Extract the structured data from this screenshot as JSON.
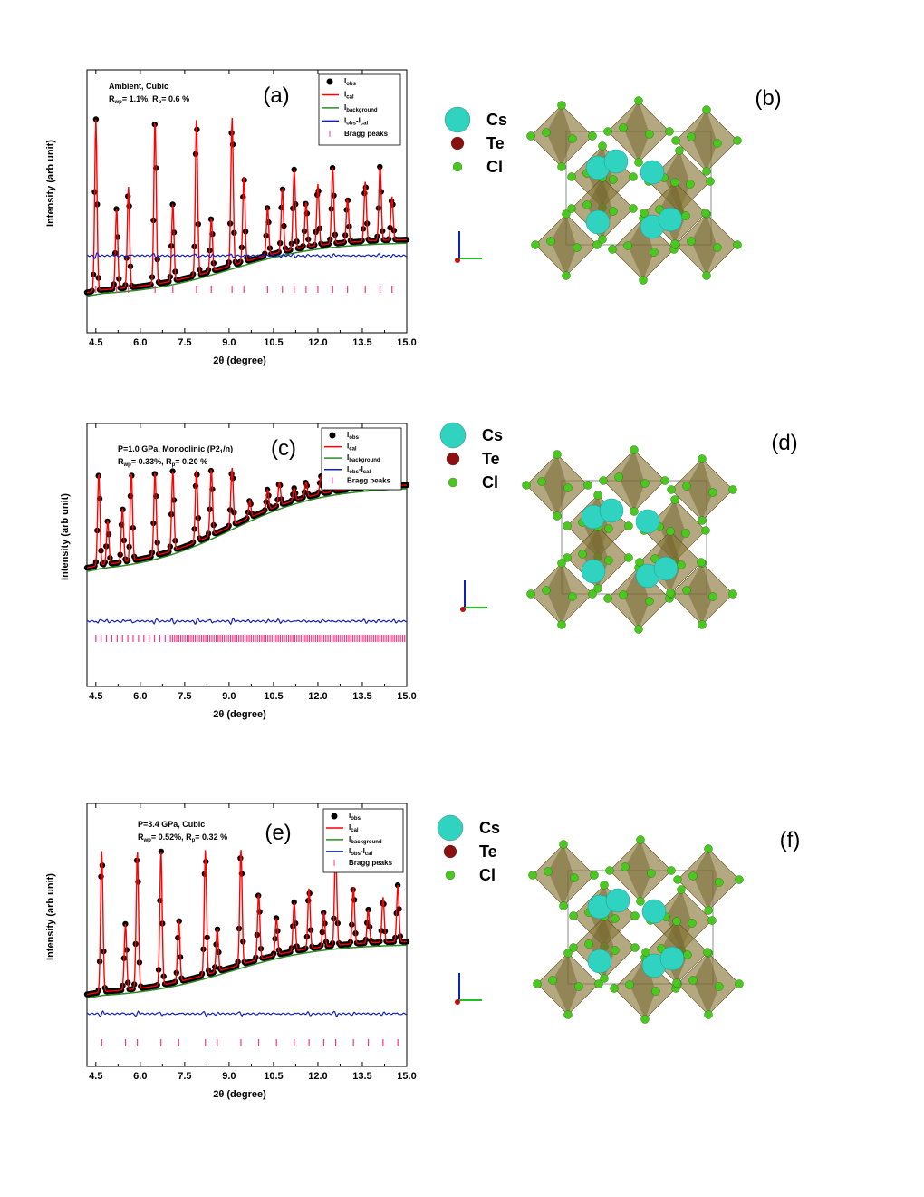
{
  "panels": [
    {
      "id": "a",
      "label": "(a)",
      "xlabel": "2θ (degree)",
      "ylabel": "Intensity (arb unit)",
      "info": [
        {
          "t": "Ambient, Cubic"
        },
        {
          "rwp": "= 1.1%, ",
          "rp": "= 0.6 %"
        }
      ],
      "legend": {
        "obs": "obs",
        "cal": "cal",
        "bg": "background",
        "diff": "obs",
        "diff2": "cal",
        "bragg": "Bragg peaks"
      }
    },
    {
      "id": "c",
      "label": "(c)",
      "xlabel": "2θ (degree)",
      "ylabel": "Intensity (arb unit)",
      "info": [
        {
          "t": "P=1.0 GPa, Monoclinic (P2",
          "sub": "1",
          "t2": "/n)"
        },
        {
          "rwp": "= 0.33%, ",
          "rp": "= 0.20 %"
        }
      ],
      "legend": {
        "obs": "obs",
        "cal": "cal",
        "bg": "background",
        "diff": "obs",
        "diff2": "cal",
        "bragg": "Bragg peaks"
      }
    },
    {
      "id": "e",
      "label": "(e)",
      "xlabel": "2θ (degree)",
      "ylabel": "Intensity (arb unit)",
      "info": [
        {
          "t": "P=3.4 GPa, Cubic"
        },
        {
          "rwp": "= 0.52%, ",
          "rp": "= 0.32 %"
        }
      ],
      "legend": {
        "obs": "obs",
        "cal": "cal",
        "bg": "background",
        "diff": "obs",
        "diff2": "cal",
        "bragg": "Bragg peaks"
      }
    }
  ],
  "structures": [
    {
      "id": "b",
      "label": "(b)",
      "atoms": [
        "Cs",
        "Te",
        "Cl"
      ]
    },
    {
      "id": "d",
      "label": "(d)",
      "atoms": [
        "Cs",
        "Te",
        "Cl"
      ]
    },
    {
      "id": "f",
      "label": "(f)",
      "atoms": [
        "Cs",
        "Te",
        "Cl"
      ]
    }
  ],
  "colors": {
    "obs": "#000000",
    "cal": "#ff0000",
    "bg": "#2e8b22",
    "diff": "#1020c0",
    "bragg": "#ff3380",
    "cs": "#2fd3c0",
    "te": "#8b1010",
    "cl": "#4ac820",
    "octa": "#8a7a3a"
  },
  "chart_data": [
    {
      "type": "line",
      "panel": "a",
      "xlabel": "2θ (degree)",
      "ylabel": "Intensity (arb unit)",
      "xlim": [
        4.2,
        15.0
      ],
      "xticks": [
        "4.5",
        "6.0",
        "7.5",
        "9.0",
        "10.5",
        "12.0",
        "13.5",
        "15.0"
      ],
      "peaks_2theta": [
        4.5,
        5.2,
        5.6,
        6.5,
        7.1,
        7.9,
        8.4,
        9.1,
        9.5,
        10.3,
        10.8,
        11.2,
        11.6,
        12.0,
        12.5,
        13.0,
        13.6,
        14.1,
        14.5
      ],
      "series": [
        {
          "name": "I_obs"
        },
        {
          "name": "I_cal"
        },
        {
          "name": "I_background"
        },
        {
          "name": "I_obs-I_cal"
        },
        {
          "name": "Bragg peaks"
        }
      ],
      "Rwp": "1.1%",
      "Rp": "0.6 %"
    },
    {
      "type": "line",
      "panel": "c",
      "xlabel": "2θ (degree)",
      "ylabel": "Intensity (arb unit)",
      "xlim": [
        4.2,
        15.0
      ],
      "xticks": [
        "4.5",
        "6.0",
        "7.5",
        "9.0",
        "10.5",
        "12.0",
        "13.5",
        "15.0"
      ],
      "peaks_2theta": [
        4.6,
        4.9,
        5.4,
        5.7,
        6.5,
        7.1,
        7.9,
        8.4,
        9.1,
        9.7,
        10.3,
        10.7,
        11.2,
        11.6,
        12.1,
        12.5,
        13.1,
        13.6,
        14.0,
        14.6
      ],
      "series": [
        {
          "name": "I_obs"
        },
        {
          "name": "I_cal"
        },
        {
          "name": "I_background"
        },
        {
          "name": "I_obs-I_cal"
        },
        {
          "name": "Bragg peaks"
        }
      ],
      "Rwp": "0.33%",
      "Rp": "0.20 %"
    },
    {
      "type": "line",
      "panel": "e",
      "xlabel": "2θ (degree)",
      "ylabel": "Intensity (arb unit)",
      "xlim": [
        4.2,
        15.0
      ],
      "xticks": [
        "4.5",
        "6.0",
        "7.5",
        "9.0",
        "10.5",
        "12.0",
        "13.5",
        "15.0"
      ],
      "peaks_2theta": [
        4.7,
        5.5,
        5.9,
        6.7,
        7.3,
        8.2,
        8.6,
        9.4,
        10.0,
        10.6,
        11.2,
        11.7,
        12.2,
        12.6,
        13.2,
        13.7,
        14.2,
        14.7
      ],
      "series": [
        {
          "name": "I_obs"
        },
        {
          "name": "I_cal"
        },
        {
          "name": "I_background"
        },
        {
          "name": "I_obs-I_cal"
        },
        {
          "name": "Bragg peaks"
        }
      ],
      "Rwp": "0.52%",
      "Rp": "0.32 %"
    }
  ]
}
